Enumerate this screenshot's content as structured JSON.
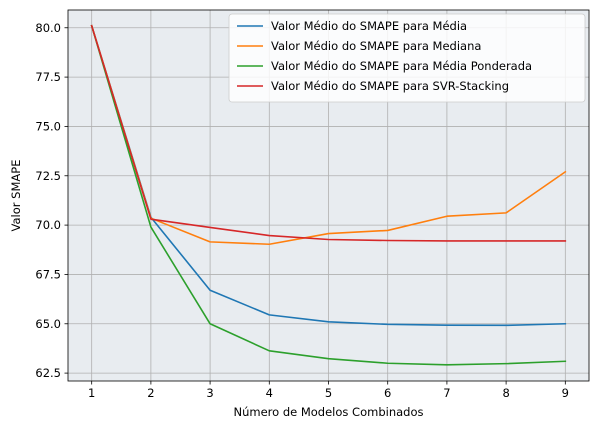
{
  "chart_data": {
    "type": "line",
    "title": "",
    "xlabel": "Número de Modelos Combinados",
    "ylabel": "Valor SMAPE",
    "x": [
      1,
      2,
      3,
      4,
      5,
      6,
      7,
      8,
      9
    ],
    "xlim": [
      0.6,
      9.4
    ],
    "ylim": [
      62.1,
      80.9
    ],
    "xticks": [
      "1",
      "2",
      "3",
      "4",
      "5",
      "6",
      "7",
      "8",
      "9"
    ],
    "yticks": [
      "62.5",
      "65.0",
      "67.5",
      "70.0",
      "72.5",
      "75.0",
      "77.5",
      "80.0"
    ],
    "grid": true,
    "legend_position": "top-right",
    "series": [
      {
        "name": "Valor Médio do SMAPE para Média",
        "color": "#1f77b4",
        "values": [
          80.1,
          70.4,
          66.7,
          65.45,
          65.1,
          64.97,
          64.93,
          64.92,
          65.0
        ]
      },
      {
        "name": "Valor Médio do SMAPE para Mediana",
        "color": "#ff7f0e",
        "values": [
          80.1,
          70.35,
          69.15,
          69.03,
          69.57,
          69.73,
          70.45,
          70.62,
          72.7
        ]
      },
      {
        "name": "Valor Médio do SMAPE para Média Ponderada",
        "color": "#2ca02c",
        "values": [
          80.1,
          69.9,
          65.0,
          63.63,
          63.23,
          63.0,
          62.92,
          62.98,
          63.1
        ]
      },
      {
        "name": "Valor Médio do SMAPE para SVR-Stacking",
        "color": "#d62728",
        "values": [
          80.1,
          70.3,
          69.88,
          69.47,
          69.27,
          69.22,
          69.2,
          69.2,
          69.2
        ]
      }
    ]
  }
}
